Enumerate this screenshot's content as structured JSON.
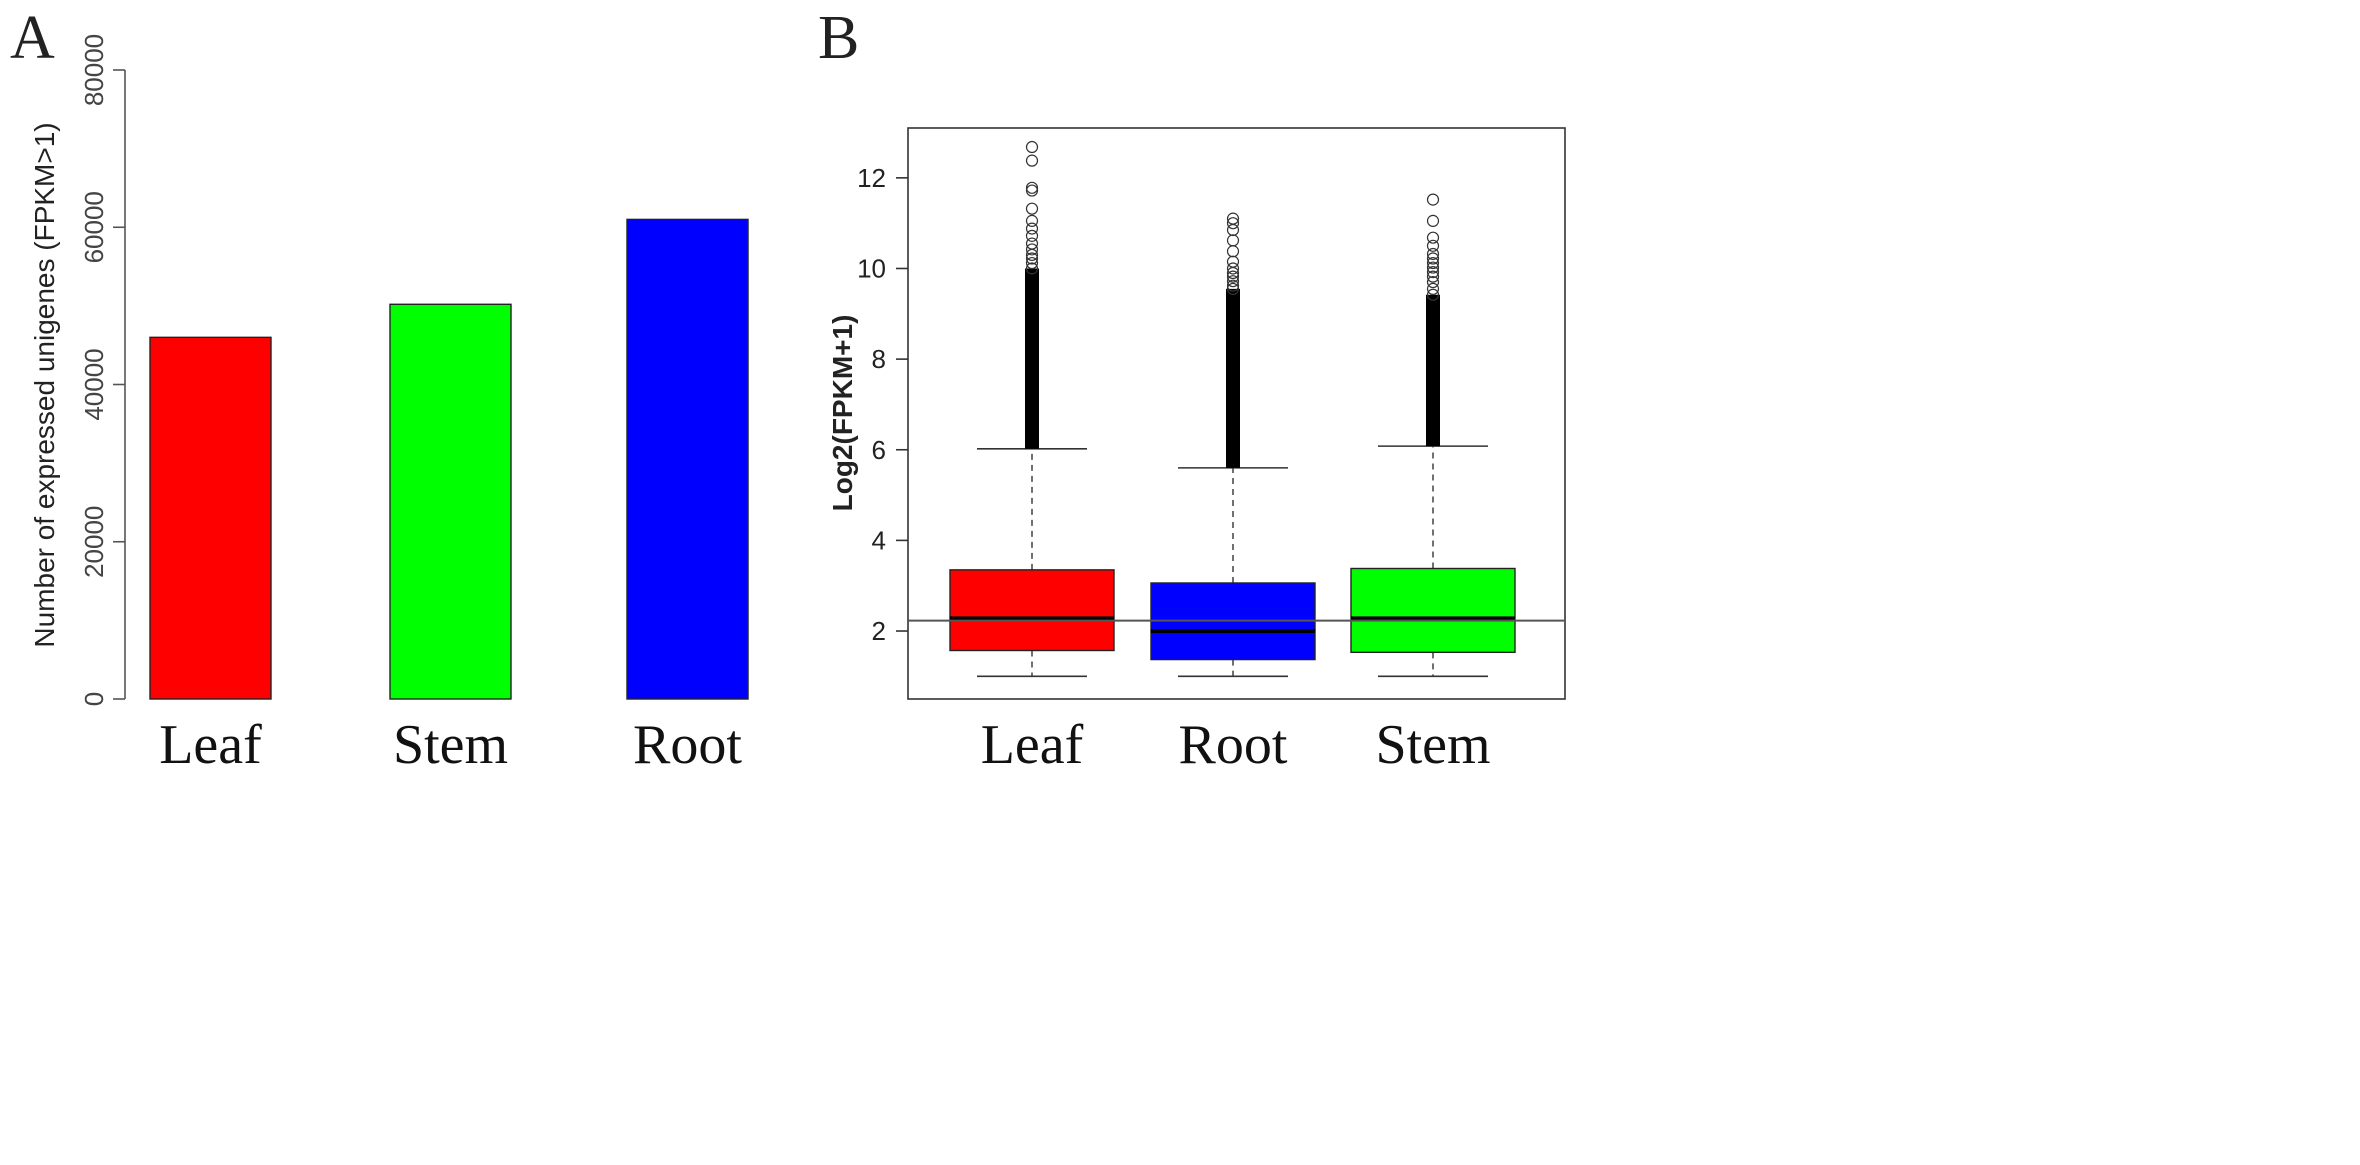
{
  "chart_data": [
    {
      "panel": "A",
      "type": "bar",
      "title": "",
      "xlabel": "",
      "ylabel": "Number of expressed unigenes (FPKM>1)",
      "ylim": [
        0,
        80000
      ],
      "yticks": [
        "0",
        "20000",
        "40000",
        "60000",
        "80000"
      ],
      "categories": [
        "Leaf",
        "Stem",
        "Root"
      ],
      "values": [
        46000,
        50200,
        61000
      ],
      "colors": [
        "#ff0000",
        "#00ff00",
        "#0000ff"
      ]
    },
    {
      "panel": "B",
      "type": "box",
      "title": "",
      "xlabel": "",
      "ylabel": "Log2(FPKM+1)",
      "ylim": [
        0.5,
        13.1
      ],
      "yticks": [
        "2",
        "4",
        "6",
        "8",
        "10",
        "12"
      ],
      "categories": [
        "Leaf",
        "Root",
        "Stem"
      ],
      "colors": [
        "#ff0000",
        "#0000ff",
        "#00ff00"
      ],
      "reference_line": 2.23,
      "boxes": [
        {
          "name": "Leaf",
          "whisker_low": 1.0,
          "q1": 1.57,
          "median": 2.28,
          "q3": 3.35,
          "whisker_high": 6.02,
          "outliers": [
            12.68,
            12.38,
            11.78,
            11.72,
            11.32,
            11.05,
            10.88,
            10.72,
            10.55,
            10.42,
            10.3,
            10.22,
            10.12,
            10.0
          ]
        },
        {
          "name": "Root",
          "whisker_low": 1.0,
          "q1": 1.37,
          "median": 2.0,
          "q3": 3.06,
          "whisker_high": 5.6,
          "outliers": [
            11.1,
            11.0,
            10.85,
            10.62,
            10.38,
            10.15,
            10.0,
            9.9,
            9.82,
            9.72,
            9.62,
            9.55
          ]
        },
        {
          "name": "Stem",
          "whisker_low": 1.0,
          "q1": 1.53,
          "median": 2.28,
          "q3": 3.38,
          "whisker_high": 6.08,
          "outliers": [
            11.52,
            11.05,
            10.68,
            10.5,
            10.32,
            10.22,
            10.12,
            10.02,
            9.92,
            9.82,
            9.7,
            9.55,
            9.42
          ]
        }
      ]
    }
  ]
}
